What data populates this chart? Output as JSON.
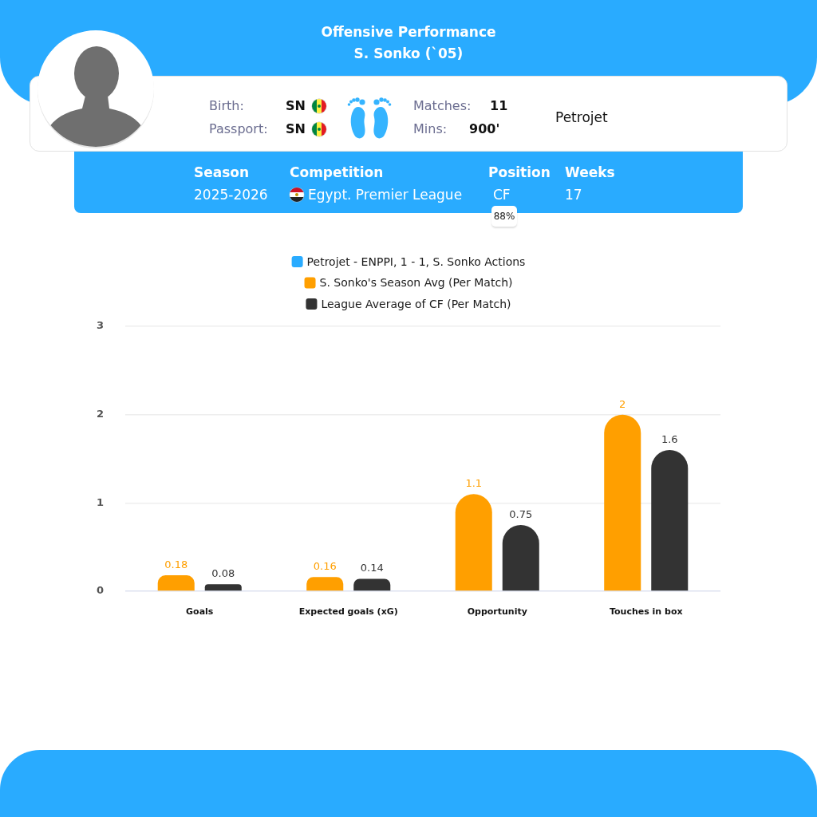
{
  "chart_data": {
    "type": "bar",
    "title": "Offensive Performance",
    "subtitle": "S. Sonko (`05)",
    "categories": [
      "Goals",
      "Expected goals (xG)",
      "Opportunity",
      "Touches in box"
    ],
    "series": [
      {
        "name": "Petrojet - ENPPI, 1 - 1, S. Sonko Actions",
        "color": "#29abff",
        "values": [
          null,
          null,
          null,
          null
        ]
      },
      {
        "name": "S. Sonko's Season Avg (Per Match)",
        "color": "#ff9f00",
        "values": [
          0.18,
          0.16,
          1.1,
          2
        ]
      },
      {
        "name": "League Average of CF (Per Match)",
        "color": "#333333",
        "values": [
          0.08,
          0.14,
          0.75,
          1.6
        ]
      }
    ],
    "ylim": [
      0,
      3
    ],
    "yticks": [
      0,
      1,
      2,
      3
    ],
    "grid": "y",
    "legend": "top",
    "data_labels": true,
    "annotations": [
      "Birth:",
      "SN",
      "Passport:",
      "SN",
      "Matches:",
      "11",
      "Mins:",
      "900'",
      "Petrojet",
      "Season",
      "2025-2026",
      "Competition",
      "Egypt. Premier League",
      "Position",
      "CF",
      "88%",
      "Weeks",
      "17"
    ]
  }
}
